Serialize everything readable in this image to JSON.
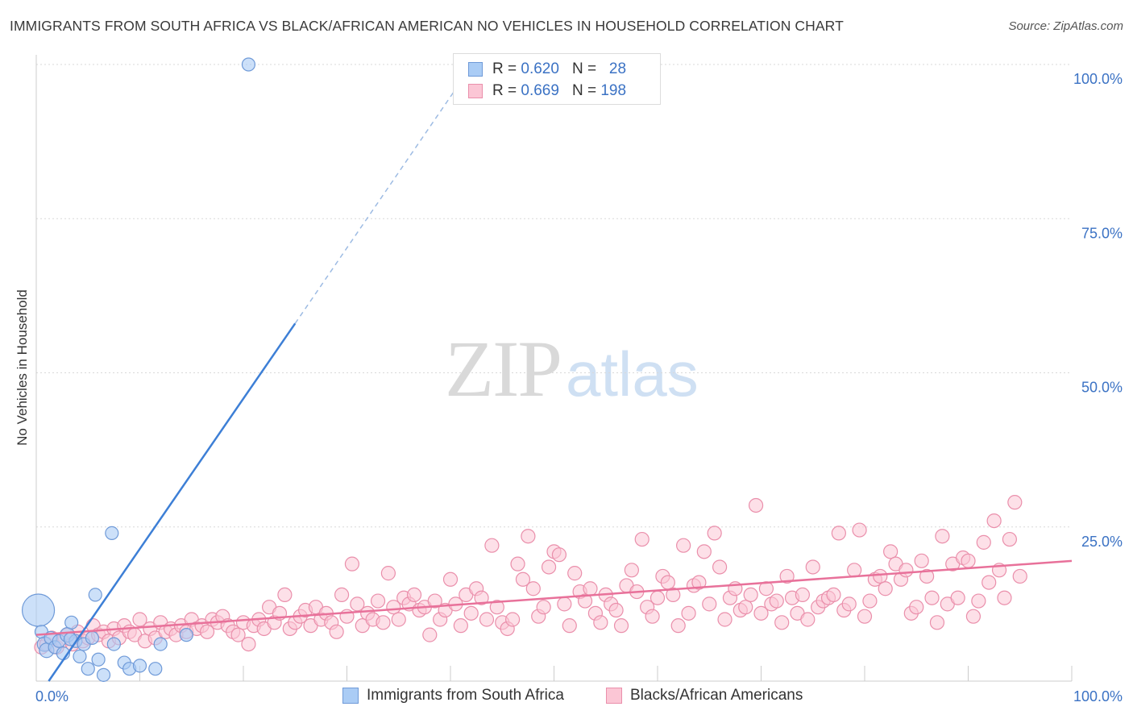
{
  "header": {
    "title": "IMMIGRANTS FROM SOUTH AFRICA VS BLACK/AFRICAN AMERICAN NO VEHICLES IN HOUSEHOLD CORRELATION CHART",
    "source": "Source: ZipAtlas.com"
  },
  "watermark": {
    "zip": "ZIP",
    "atlas": "atlas"
  },
  "legend_top": {
    "rows": [
      {
        "r_label": "R =",
        "r_value": "0.620",
        "n_label": "N =",
        "n_value": "28",
        "color": "#aaccf5",
        "border": "#6f9ad8"
      },
      {
        "r_label": "R =",
        "r_value": "0.669",
        "n_label": "N =",
        "n_value": "198",
        "color": "#fbc6d5",
        "border": "#ea8fab"
      }
    ]
  },
  "legend_bottom": {
    "items": [
      {
        "label": "Immigrants from South Africa",
        "color": "#aaccf5",
        "border": "#6f9ad8"
      },
      {
        "label": "Blacks/African Americans",
        "color": "#fbc6d5",
        "border": "#ea8fab"
      }
    ]
  },
  "chart_data": {
    "type": "scatter",
    "title": "IMMIGRANTS FROM SOUTH AFRICA VS BLACK/AFRICAN AMERICAN NO VEHICLES IN HOUSEHOLD CORRELATION CHART",
    "xlabel": "",
    "ylabel": "No Vehicles in Household",
    "xlim": [
      0,
      100
    ],
    "ylim": [
      0,
      100
    ],
    "x_tick_labels": [
      "0.0%",
      "100.0%"
    ],
    "y_ticks": [
      25,
      50,
      75,
      100
    ],
    "y_tick_labels": [
      "25.0%",
      "50.0%",
      "75.0%",
      "100.0%"
    ],
    "grid": true,
    "colors": {
      "blue": "#3d7fd6",
      "pink": "#e8719a",
      "tick_text": "#3b72c4"
    },
    "series": [
      {
        "name": "Immigrants from South Africa",
        "color": "#aaccf5",
        "stroke": "#6f9ad8",
        "trend": {
          "x0": 1.2,
          "y0": 0,
          "x1": 25.0,
          "y1": 58.0,
          "dashed_to": [
            40.5,
            96.0
          ]
        },
        "points": [
          [
            0.2,
            11.5,
            20
          ],
          [
            0.5,
            8.0,
            8
          ],
          [
            0.8,
            6.0,
            9
          ],
          [
            1.0,
            5.0,
            9
          ],
          [
            1.4,
            7.0,
            8
          ],
          [
            1.8,
            5.5,
            8
          ],
          [
            2.2,
            6.5,
            8
          ],
          [
            2.6,
            4.5,
            8
          ],
          [
            3.0,
            7.5,
            9
          ],
          [
            3.4,
            9.5,
            8
          ],
          [
            3.8,
            6.5,
            8
          ],
          [
            4.2,
            4.0,
            8
          ],
          [
            4.6,
            6.0,
            8
          ],
          [
            5.0,
            2.0,
            8
          ],
          [
            5.4,
            7.0,
            8
          ],
          [
            6.0,
            3.5,
            8
          ],
          [
            6.5,
            1.0,
            8
          ],
          [
            5.7,
            14.0,
            8
          ],
          [
            7.5,
            6.0,
            8
          ],
          [
            8.5,
            3.0,
            8
          ],
          [
            9.0,
            2.0,
            8
          ],
          [
            10.0,
            2.5,
            8
          ],
          [
            11.5,
            2.0,
            8
          ],
          [
            12.0,
            6.0,
            8
          ],
          [
            14.5,
            7.5,
            8
          ],
          [
            7.3,
            24.0,
            8
          ],
          [
            20.5,
            100.0,
            8
          ],
          [
            3.3,
            6.8,
            8
          ]
        ]
      },
      {
        "name": "Blacks/African Americans",
        "color": "#fbc6d5",
        "stroke": "#ea8fab",
        "trend": {
          "x0": 0,
          "y0": 7.5,
          "x1": 100,
          "y1": 19.5
        },
        "points": [
          [
            0.5,
            5.5
          ],
          [
            1.0,
            6.0
          ],
          [
            1.5,
            7.0
          ],
          [
            2.0,
            5.5
          ],
          [
            2.5,
            6.5
          ],
          [
            3.0,
            7.5
          ],
          [
            3.5,
            6.0
          ],
          [
            4.0,
            8.0
          ],
          [
            4.5,
            6.5
          ],
          [
            5.0,
            7.0
          ],
          [
            5.5,
            9.0
          ],
          [
            6.0,
            7.5
          ],
          [
            6.5,
            8.0
          ],
          [
            7.0,
            6.5
          ],
          [
            7.5,
            8.5
          ],
          [
            8.0,
            7.0
          ],
          [
            8.5,
            9.0
          ],
          [
            9.0,
            8.0
          ],
          [
            9.5,
            7.5
          ],
          [
            10.0,
            10.0
          ],
          [
            10.5,
            6.5
          ],
          [
            11.0,
            8.5
          ],
          [
            11.5,
            7.0
          ],
          [
            12.0,
            9.5
          ],
          [
            12.5,
            8.0
          ],
          [
            13.0,
            8.5
          ],
          [
            13.5,
            7.5
          ],
          [
            14.0,
            9.0
          ],
          [
            14.5,
            8.0
          ],
          [
            15.0,
            10.0
          ],
          [
            15.5,
            8.5
          ],
          [
            16.0,
            9.0
          ],
          [
            16.5,
            8.0
          ],
          [
            17.0,
            10.0
          ],
          [
            17.5,
            9.5
          ],
          [
            18.0,
            10.5
          ],
          [
            18.5,
            9.0
          ],
          [
            19.0,
            8.0
          ],
          [
            19.5,
            7.5
          ],
          [
            20.0,
            9.5
          ],
          [
            20.5,
            6.0
          ],
          [
            21.0,
            9.0
          ],
          [
            21.5,
            10.0
          ],
          [
            22.0,
            8.5
          ],
          [
            22.5,
            12.0
          ],
          [
            23.0,
            9.5
          ],
          [
            23.5,
            11.0
          ],
          [
            24.0,
            14.0
          ],
          [
            24.5,
            8.5
          ],
          [
            25.0,
            9.5
          ],
          [
            25.5,
            10.5
          ],
          [
            26.0,
            11.5
          ],
          [
            26.5,
            9.0
          ],
          [
            27.0,
            12.0
          ],
          [
            27.5,
            10.0
          ],
          [
            28.0,
            11.0
          ],
          [
            28.5,
            9.5
          ],
          [
            29.0,
            8.0
          ],
          [
            29.5,
            14.0
          ],
          [
            30.0,
            10.5
          ],
          [
            30.5,
            19.0
          ],
          [
            31.0,
            12.5
          ],
          [
            31.5,
            9.0
          ],
          [
            32.0,
            11.0
          ],
          [
            32.5,
            10.0
          ],
          [
            33.0,
            13.0
          ],
          [
            33.5,
            9.5
          ],
          [
            34.0,
            17.5
          ],
          [
            34.5,
            12.0
          ],
          [
            35.0,
            10.0
          ],
          [
            35.5,
            13.5
          ],
          [
            36.0,
            12.5
          ],
          [
            36.5,
            14.0
          ],
          [
            37.0,
            11.5
          ],
          [
            37.5,
            12.0
          ],
          [
            38.0,
            7.5
          ],
          [
            38.5,
            13.0
          ],
          [
            39.0,
            10.0
          ],
          [
            39.5,
            11.5
          ],
          [
            40.0,
            16.5
          ],
          [
            40.5,
            12.5
          ],
          [
            41.0,
            9.0
          ],
          [
            41.5,
            14.0
          ],
          [
            42.0,
            11.0
          ],
          [
            42.5,
            15.0
          ],
          [
            43.0,
            13.5
          ],
          [
            43.5,
            10.0
          ],
          [
            44.0,
            22.0
          ],
          [
            44.5,
            12.0
          ],
          [
            45.0,
            9.5
          ],
          [
            45.5,
            8.5
          ],
          [
            46.0,
            10.0
          ],
          [
            46.5,
            19.0
          ],
          [
            47.0,
            16.5
          ],
          [
            47.5,
            23.5
          ],
          [
            48.0,
            15.0
          ],
          [
            48.5,
            10.5
          ],
          [
            49.0,
            12.0
          ],
          [
            49.5,
            18.5
          ],
          [
            50.0,
            21.0
          ],
          [
            50.5,
            20.5
          ],
          [
            51.0,
            12.5
          ],
          [
            51.5,
            9.0
          ],
          [
            52.0,
            17.5
          ],
          [
            52.5,
            14.5
          ],
          [
            53.0,
            13.0
          ],
          [
            53.5,
            15.0
          ],
          [
            54.0,
            11.0
          ],
          [
            54.5,
            9.5
          ],
          [
            55.0,
            14.0
          ],
          [
            55.5,
            12.5
          ],
          [
            56.0,
            11.5
          ],
          [
            56.5,
            9.0
          ],
          [
            57.0,
            15.5
          ],
          [
            57.5,
            18.0
          ],
          [
            58.0,
            14.5
          ],
          [
            58.5,
            23.0
          ],
          [
            59.0,
            12.0
          ],
          [
            59.5,
            10.5
          ],
          [
            60.0,
            13.5
          ],
          [
            60.5,
            17.0
          ],
          [
            61.0,
            16.0
          ],
          [
            61.5,
            14.0
          ],
          [
            62.0,
            9.0
          ],
          [
            62.5,
            22.0
          ],
          [
            63.0,
            11.0
          ],
          [
            63.5,
            15.5
          ],
          [
            64.0,
            16.0
          ],
          [
            64.5,
            21.0
          ],
          [
            65.0,
            12.5
          ],
          [
            65.5,
            24.0
          ],
          [
            66.0,
            18.5
          ],
          [
            66.5,
            10.0
          ],
          [
            67.0,
            13.5
          ],
          [
            67.5,
            15.0
          ],
          [
            68.0,
            11.5
          ],
          [
            68.5,
            12.0
          ],
          [
            69.0,
            14.0
          ],
          [
            69.5,
            28.5
          ],
          [
            70.0,
            11.0
          ],
          [
            70.5,
            15.0
          ],
          [
            71.0,
            12.5
          ],
          [
            71.5,
            13.0
          ],
          [
            72.0,
            9.5
          ],
          [
            72.5,
            17.0
          ],
          [
            73.0,
            13.5
          ],
          [
            73.5,
            11.0
          ],
          [
            74.0,
            14.0
          ],
          [
            74.5,
            10.0
          ],
          [
            75.0,
            18.5
          ],
          [
            75.5,
            12.0
          ],
          [
            76.0,
            13.0
          ],
          [
            76.5,
            13.5
          ],
          [
            77.0,
            14.0
          ],
          [
            77.5,
            24.0
          ],
          [
            78.0,
            11.5
          ],
          [
            78.5,
            12.5
          ],
          [
            79.0,
            18.0
          ],
          [
            79.5,
            24.5
          ],
          [
            80.0,
            10.5
          ],
          [
            80.5,
            13.0
          ],
          [
            81.0,
            16.5
          ],
          [
            81.5,
            17.0
          ],
          [
            82.0,
            15.0
          ],
          [
            82.5,
            21.0
          ],
          [
            83.0,
            19.0
          ],
          [
            83.5,
            16.5
          ],
          [
            84.0,
            18.0
          ],
          [
            84.5,
            11.0
          ],
          [
            85.0,
            12.0
          ],
          [
            85.5,
            19.5
          ],
          [
            86.0,
            17.0
          ],
          [
            86.5,
            13.5
          ],
          [
            87.0,
            9.5
          ],
          [
            87.5,
            23.5
          ],
          [
            88.0,
            12.5
          ],
          [
            88.5,
            19.0
          ],
          [
            89.0,
            13.5
          ],
          [
            89.5,
            20.0
          ],
          [
            90.0,
            19.5
          ],
          [
            90.5,
            10.5
          ],
          [
            91.0,
            13.0
          ],
          [
            91.5,
            22.5
          ],
          [
            92.0,
            16.0
          ],
          [
            92.5,
            26.0
          ],
          [
            93.0,
            18.0
          ],
          [
            93.5,
            13.5
          ],
          [
            94.0,
            23.0
          ],
          [
            94.5,
            29.0
          ],
          [
            95.0,
            17.0
          ]
        ]
      }
    ]
  }
}
